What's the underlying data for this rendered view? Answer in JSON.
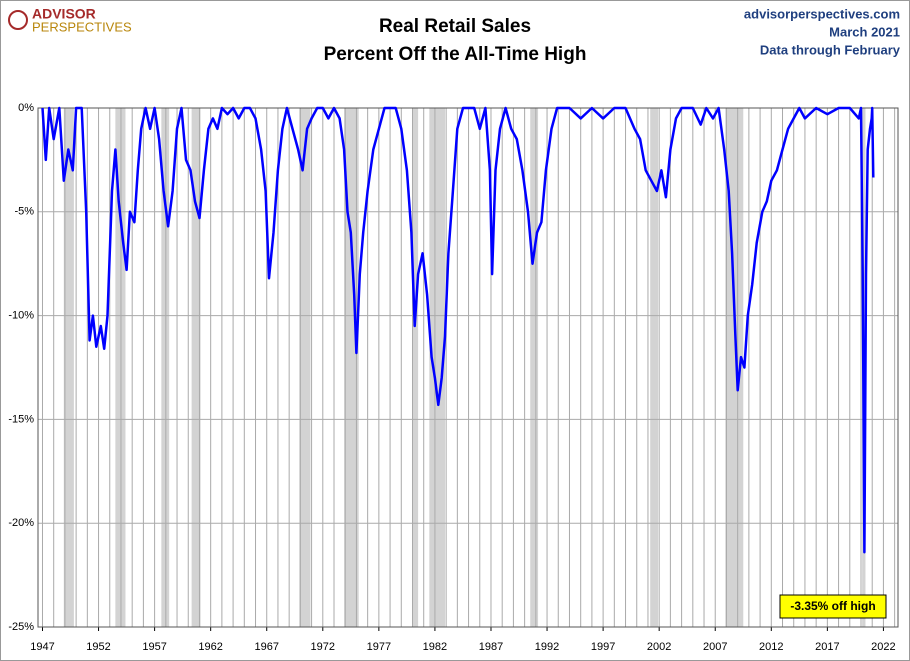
{
  "chart_data": {
    "type": "line",
    "logo": [
      "ADVISOR",
      "PERSPECTIVES"
    ],
    "title": [
      "Real Retail Sales",
      "Percent Off the All-Time High"
    ],
    "source": [
      "advisorperspectives.com",
      "March 2021",
      "Data through February"
    ],
    "annotation": "-3.35% off high",
    "xlim": [
      1946.6,
      2023.3
    ],
    "ylim": [
      -25,
      0
    ],
    "xticks": [
      1947,
      1952,
      1957,
      1962,
      1967,
      1972,
      1977,
      1982,
      1987,
      1992,
      1997,
      2002,
      2007,
      2012,
      2017,
      2022
    ],
    "xgrid_step": 1,
    "yticks": [
      {
        "value": 0,
        "label": "0%"
      },
      {
        "value": -5,
        "label": "-5%"
      },
      {
        "value": -10,
        "label": "-10%"
      },
      {
        "value": -15,
        "label": "-15%"
      },
      {
        "value": -20,
        "label": "-20%"
      },
      {
        "value": -25,
        "label": "-25%"
      }
    ],
    "grid": true,
    "recessions": [
      [
        1948.9,
        1949.8
      ],
      [
        1953.5,
        1954.4
      ],
      [
        1957.6,
        1958.3
      ],
      [
        1960.3,
        1961.1
      ],
      [
        1969.9,
        1970.9
      ],
      [
        1973.9,
        1975.2
      ],
      [
        1980.0,
        1980.5
      ],
      [
        1981.5,
        1982.9
      ],
      [
        1990.5,
        1991.2
      ],
      [
        2001.2,
        2001.9
      ],
      [
        2007.9,
        2009.5
      ],
      [
        2020.1,
        2020.4
      ]
    ],
    "recession_color": "#d3d3d3",
    "series": [
      {
        "color": "#0000ff",
        "x": [
          1947.0,
          1947.3,
          1947.6,
          1948.0,
          1948.5,
          1948.9,
          1949.3,
          1949.7,
          1950.0,
          1950.5,
          1950.9,
          1951.2,
          1951.5,
          1951.8,
          1952.2,
          1952.5,
          1952.8,
          1953.2,
          1953.5,
          1953.8,
          1954.2,
          1954.5,
          1954.8,
          1955.2,
          1955.5,
          1955.8,
          1956.2,
          1956.6,
          1957.0,
          1957.4,
          1957.8,
          1958.2,
          1958.6,
          1959.0,
          1959.4,
          1959.8,
          1960.2,
          1960.6,
          1961.0,
          1961.4,
          1961.8,
          1962.2,
          1962.6,
          1963.0,
          1963.5,
          1964.0,
          1964.5,
          1965.0,
          1965.5,
          1966.0,
          1966.5,
          1966.9,
          1967.2,
          1967.6,
          1968.0,
          1968.4,
          1968.8,
          1969.3,
          1969.8,
          1970.2,
          1970.6,
          1971.0,
          1971.5,
          1972.0,
          1972.5,
          1973.0,
          1973.5,
          1973.9,
          1974.2,
          1974.5,
          1974.8,
          1975.0,
          1975.3,
          1975.6,
          1976.0,
          1976.5,
          1977.0,
          1977.5,
          1978.0,
          1978.5,
          1979.0,
          1979.5,
          1979.9,
          1980.2,
          1980.5,
          1980.9,
          1981.3,
          1981.7,
          1982.0,
          1982.3,
          1982.6,
          1982.9,
          1983.2,
          1983.6,
          1984.0,
          1984.5,
          1985.0,
          1985.5,
          1986.0,
          1986.5,
          1986.9,
          1987.1,
          1987.4,
          1987.8,
          1988.3,
          1988.8,
          1989.3,
          1989.8,
          1990.3,
          1990.7,
          1991.1,
          1991.5,
          1991.9,
          1992.4,
          1992.9,
          1994.0,
          1995.0,
          1996.0,
          1997.0,
          1998.0,
          1999.0,
          1999.8,
          2000.3,
          2000.8,
          2001.3,
          2001.8,
          2002.2,
          2002.6,
          2003.0,
          2003.5,
          2004.0,
          2005.0,
          2005.7,
          2006.2,
          2006.8,
          2007.3,
          2007.8,
          2008.2,
          2008.5,
          2008.8,
          2009.0,
          2009.3,
          2009.6,
          2009.9,
          2010.3,
          2010.7,
          2011.2,
          2011.6,
          2012.0,
          2012.5,
          2013.0,
          2013.5,
          2014.0,
          2014.5,
          2015.0,
          2016.0,
          2017.0,
          2018.0,
          2019.0,
          2019.8,
          2020.0,
          2020.15,
          2020.3,
          2020.45,
          2020.6,
          2020.8,
          2020.95,
          2021.0,
          2021.1
        ],
        "values": [
          0,
          -2.5,
          0,
          -1.5,
          0,
          -3.5,
          -2,
          -3,
          0,
          0,
          -5,
          -11.2,
          -10,
          -11.5,
          -10.5,
          -11.6,
          -10,
          -4,
          -2,
          -4.5,
          -6.5,
          -7.8,
          -5,
          -5.5,
          -3,
          -1,
          0,
          -1,
          0,
          -1.5,
          -4,
          -5.7,
          -4,
          -1,
          0,
          -2.5,
          -3,
          -4.5,
          -5.3,
          -3,
          -1,
          -0.5,
          -1,
          0,
          -0.3,
          0,
          -0.5,
          0,
          0,
          -0.5,
          -2,
          -4,
          -8.2,
          -6,
          -3,
          -1,
          0,
          -1,
          -2,
          -3,
          -1,
          -0.5,
          0,
          0,
          -0.5,
          0,
          -0.5,
          -2,
          -5,
          -6,
          -9,
          -11.8,
          -8,
          -6,
          -4,
          -2,
          -1,
          0,
          0,
          0,
          -1,
          -3,
          -6,
          -10.5,
          -8,
          -7,
          -9,
          -12,
          -13,
          -14.3,
          -13,
          -11,
          -7,
          -4,
          -1,
          0,
          0,
          0,
          -1,
          0,
          -3,
          -8,
          -3,
          -1,
          0,
          -1,
          -1.5,
          -3,
          -5,
          -7.5,
          -6,
          -5.5,
          -3,
          -1,
          0,
          0,
          -0.5,
          0,
          -0.5,
          0,
          0,
          -1,
          -1.5,
          -3,
          -3.5,
          -4,
          -3,
          -4.3,
          -2,
          -0.5,
          0,
          0,
          -0.8,
          0,
          -0.5,
          0,
          -2,
          -4,
          -7,
          -11,
          -13.6,
          -12,
          -12.5,
          -10,
          -8.5,
          -6.5,
          -5,
          -4.5,
          -3.5,
          -3,
          -2,
          -1,
          -0.5,
          0,
          -0.5,
          0,
          -0.3,
          0,
          0,
          -0.5,
          0,
          -8,
          -21.4,
          -8,
          -2,
          -1,
          -0.5,
          0,
          -3.35
        ]
      }
    ]
  }
}
